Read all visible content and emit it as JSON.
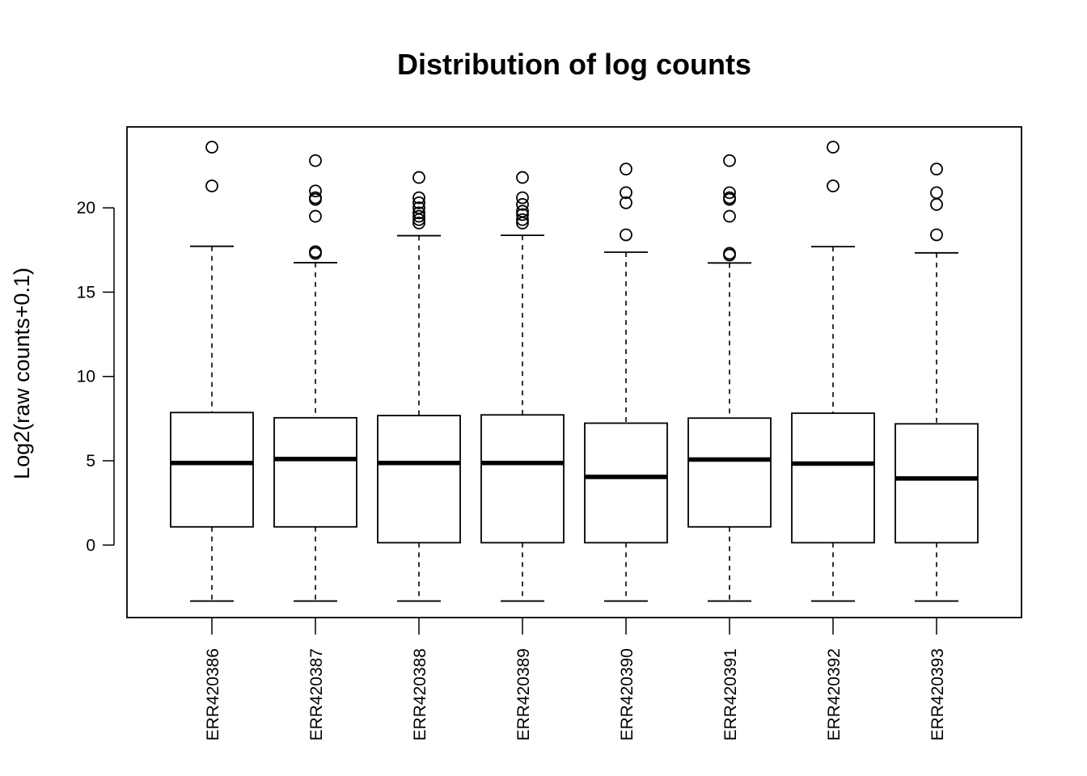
{
  "chart_data": {
    "type": "boxplot",
    "title": "Distribution of log counts",
    "xlabel": "",
    "ylabel": "Log2(raw counts+0.1)",
    "ylim": [
      -4.3,
      24.8
    ],
    "yticks": [
      0,
      5,
      10,
      15,
      20
    ],
    "categories": [
      "ERR420386",
      "ERR420387",
      "ERR420388",
      "ERR420389",
      "ERR420390",
      "ERR420391",
      "ERR420392",
      "ERR420393"
    ],
    "boxes": [
      {
        "name": "ERR420386",
        "whisker_low": -3.32,
        "q1": 1.08,
        "median": 4.87,
        "q3": 7.86,
        "whisker_high": 17.72,
        "outliers": [
          21.3,
          23.6
        ]
      },
      {
        "name": "ERR420387",
        "whisker_low": -3.32,
        "q1": 1.08,
        "median": 5.1,
        "q3": 7.55,
        "whisker_high": 16.75,
        "outliers": [
          17.3,
          17.4,
          19.5,
          20.5,
          20.6,
          21.0,
          22.8
        ]
      },
      {
        "name": "ERR420388",
        "whisker_low": -3.32,
        "q1": 0.14,
        "median": 4.87,
        "q3": 7.68,
        "whisker_high": 18.35,
        "outliers": [
          19.1,
          19.3,
          19.5,
          19.7,
          20.0,
          20.3,
          20.6,
          21.8
        ]
      },
      {
        "name": "ERR420389",
        "whisker_low": -3.32,
        "q1": 0.14,
        "median": 4.87,
        "q3": 7.72,
        "whisker_high": 18.37,
        "outliers": [
          19.1,
          19.3,
          19.6,
          19.8,
          20.2,
          20.6,
          21.8
        ]
      },
      {
        "name": "ERR420390",
        "whisker_low": -3.32,
        "q1": 0.14,
        "median": 4.04,
        "q3": 7.23,
        "whisker_high": 17.37,
        "outliers": [
          18.4,
          20.3,
          20.9,
          22.3
        ]
      },
      {
        "name": "ERR420391",
        "whisker_low": -3.32,
        "q1": 1.08,
        "median": 5.07,
        "q3": 7.53,
        "whisker_high": 16.73,
        "outliers": [
          17.2,
          17.3,
          19.5,
          20.5,
          20.6,
          20.9,
          22.8
        ]
      },
      {
        "name": "ERR420392",
        "whisker_low": -3.32,
        "q1": 0.14,
        "median": 4.83,
        "q3": 7.82,
        "whisker_high": 17.7,
        "outliers": [
          21.3,
          23.6
        ]
      },
      {
        "name": "ERR420393",
        "whisker_low": -3.32,
        "q1": 0.14,
        "median": 3.95,
        "q3": 7.19,
        "whisker_high": 17.33,
        "outliers": [
          18.4,
          20.2,
          20.9,
          22.3
        ]
      }
    ],
    "grid": false,
    "legend": "none"
  }
}
